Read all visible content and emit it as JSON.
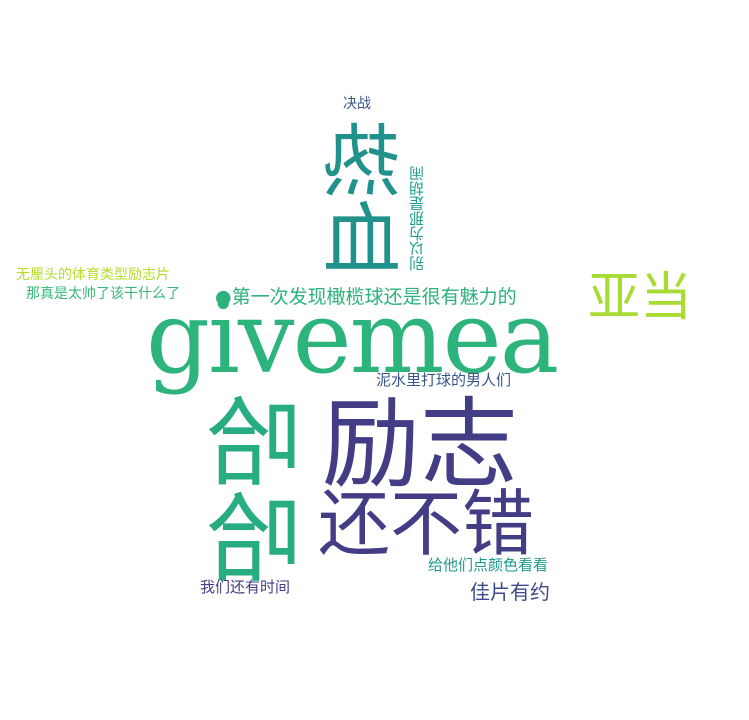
{
  "words": [
    {
      "text": "givemea",
      "color": "#2db47d"
    },
    {
      "text": "励志",
      "color": "#433d85"
    },
    {
      "text": "哈哈",
      "color": "#27ad81"
    },
    {
      "text": "还不错",
      "color": "#433d85"
    },
    {
      "text": "热血",
      "color": "#21918c"
    },
    {
      "text": "亚当",
      "color": "#a8db34"
    },
    {
      "text": "●第一次发现橄榄球还是很有魅力的",
      "color": "#2db27d"
    },
    {
      "text": "泥水里打球的男人们",
      "color": "#39568c"
    },
    {
      "text": "别以为那是胡闹",
      "color": "#1f9e89"
    },
    {
      "text": "无厘头的体育类型励志片",
      "color": "#b5de2b"
    },
    {
      "text": "那真是太帅了该干什么了",
      "color": "#37b878"
    },
    {
      "text": "决战",
      "color": "#39568c"
    },
    {
      "text": "给他们点颜色看看",
      "color": "#1f9a8a"
    },
    {
      "text": "佳片有约",
      "color": "#3e4a89"
    },
    {
      "text": "我们还有时间",
      "color": "#433e85"
    }
  ]
}
